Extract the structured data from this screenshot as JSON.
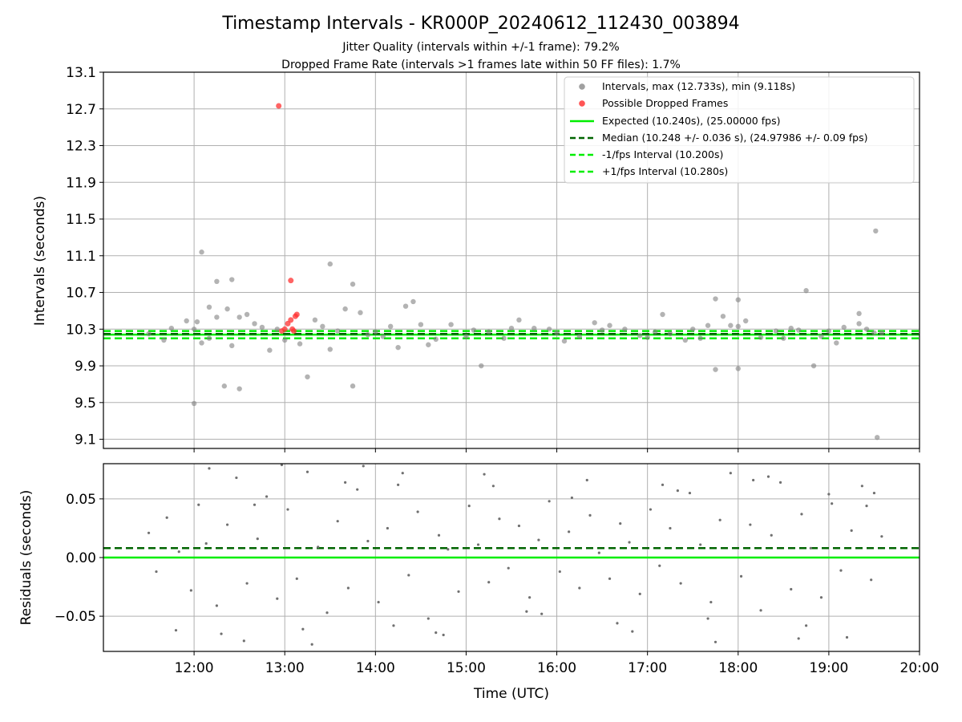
{
  "chart_data": [
    {
      "type": "scatter",
      "title": "Timestamp Intervals - KR000P_20240612_112430_003894",
      "subtitle_lines": [
        "Jitter Quality (intervals within +/-1 frame): 79.2%",
        "Dropped Frame Rate (intervals >1 frames late within 50 FF files): 1.7%"
      ],
      "ylabel": "Intervals (seconds)",
      "ylim": [
        9.0,
        13.1
      ],
      "yticks": [
        "13.1",
        "12.7",
        "12.3",
        "11.9",
        "11.5",
        "11.1",
        "10.7",
        "10.3",
        "9.9",
        "9.5",
        "9.1"
      ],
      "xlim": [
        "11:00",
        "20:00"
      ],
      "grid": true,
      "legend_position": "top-right",
      "legend": [
        {
          "label": "Intervals, max (12.733s), min (9.118s)",
          "kind": "marker",
          "color": "#a0a0a0"
        },
        {
          "label": "Possible Dropped Frames",
          "kind": "marker",
          "color": "#ff5555"
        },
        {
          "label": "Expected (10.240s), (25.00000 fps)",
          "kind": "line",
          "color": "#00ee00",
          "dash": "solid"
        },
        {
          "label": "Median (10.248 +/- 0.036 s), (24.97986 +/- 0.09 fps)",
          "kind": "line",
          "color": "#006400",
          "dash": "dashed"
        },
        {
          "label": "-1/fps Interval (10.200s)",
          "kind": "line",
          "color": "#00ee00",
          "dash": "dashed"
        },
        {
          "label": "+1/fps Interval (10.280s)",
          "kind": "line",
          "color": "#00ee00",
          "dash": "dashed"
        }
      ],
      "reference_lines": {
        "expected": 10.24,
        "median": 10.248,
        "minus_one_frame": 10.2,
        "plus_one_frame": 10.28
      },
      "series": [
        {
          "name": "Intervals, max (12.733s), min (9.118s)",
          "color": "#808080",
          "x": [
            "12:05",
            "12:02",
            "12:15",
            "12:25",
            "12:30",
            "12:10",
            "12:22",
            "12:35",
            "13:30",
            "13:45",
            "13:50",
            "13:40",
            "14:20",
            "14:25",
            "17:10",
            "17:45",
            "17:50",
            "18:00",
            "18:45",
            "19:20",
            "19:31",
            "19:32",
            "12:00",
            "12:20",
            "12:30",
            "13:15",
            "13:45",
            "15:10",
            "17:45",
            "18:00",
            "18:50",
            "12:05",
            "13:30",
            "12:00",
            "12:45",
            "13:00",
            "14:00",
            "14:30",
            "15:00",
            "15:30",
            "16:00",
            "16:30",
            "17:00",
            "17:30",
            "18:00",
            "18:30",
            "19:00",
            "19:30",
            "11:45",
            "12:10",
            "12:40",
            "13:10",
            "13:35",
            "14:10",
            "14:40",
            "15:15",
            "15:45",
            "16:15",
            "16:45",
            "17:15",
            "17:40",
            "18:15",
            "18:40",
            "19:10",
            "11:30",
            "11:55",
            "12:25",
            "12:55",
            "13:20",
            "13:55",
            "14:15",
            "14:50",
            "15:25",
            "15:55",
            "16:25",
            "16:55",
            "17:25",
            "17:55",
            "18:25",
            "18:55",
            "19:20",
            "19:35",
            "11:40",
            "12:15",
            "12:50",
            "13:25",
            "14:05",
            "14:35",
            "15:05",
            "15:35",
            "16:05",
            "16:35",
            "17:05",
            "17:35",
            "18:05",
            "18:35",
            "19:05",
            "19:25"
          ],
          "y": [
            11.14,
            10.38,
            10.82,
            10.84,
            10.43,
            10.54,
            10.52,
            10.46,
            11.01,
            10.79,
            10.48,
            10.52,
            10.55,
            10.6,
            10.46,
            10.63,
            10.44,
            10.62,
            10.72,
            10.47,
            11.37,
            9.12,
            9.49,
            9.68,
            9.65,
            9.78,
            9.68,
            9.9,
            9.86,
            9.87,
            9.9,
            10.15,
            10.08,
            10.3,
            10.32,
            10.18,
            10.27,
            10.35,
            10.22,
            10.31,
            10.26,
            10.29,
            10.21,
            10.3,
            10.33,
            10.2,
            10.28,
            10.26,
            10.31,
            10.2,
            10.36,
            10.14,
            10.28,
            10.33,
            10.19,
            10.27,
            10.31,
            10.22,
            10.3,
            10.25,
            10.34,
            10.21,
            10.29,
            10.32,
            10.25,
            10.39,
            10.12,
            10.3,
            10.4,
            10.24,
            10.1,
            10.35,
            10.2,
            10.3,
            10.37,
            10.23,
            10.18,
            10.34,
            10.28,
            10.22,
            10.36,
            10.26,
            10.18,
            10.43,
            10.07,
            10.33,
            10.22,
            10.13,
            10.29,
            10.4,
            10.17,
            10.34,
            10.27,
            10.2,
            10.39,
            10.31,
            10.15,
            10.3
          ]
        },
        {
          "name": "Possible Dropped Frames",
          "color": "#ff3030",
          "x": [
            "12:56",
            "12:58",
            "13:00",
            "13:02",
            "13:04",
            "13:05",
            "13:06",
            "13:07",
            "13:08",
            "13:04"
          ],
          "y": [
            12.733,
            10.28,
            10.3,
            10.36,
            10.4,
            10.3,
            10.28,
            10.44,
            10.46,
            10.83
          ]
        }
      ]
    },
    {
      "type": "scatter",
      "ylabel": "Residuals (seconds)",
      "xlabel": "Time (UTC)",
      "ylim": [
        -0.08,
        0.08
      ],
      "yticks": [
        "0.05",
        "0.00",
        "−0.05"
      ],
      "ytick_values": [
        0.05,
        0.0,
        -0.05
      ],
      "xticks": [
        "12:00",
        "13:00",
        "14:00",
        "15:00",
        "16:00",
        "17:00",
        "18:00",
        "19:00",
        "20:00"
      ],
      "xlim": [
        "11:00",
        "20:00"
      ],
      "grid": true,
      "reference_lines": {
        "expected": 0.0,
        "median": 0.008
      },
      "series": [
        {
          "color": "#707070",
          "x": [
            "11:30",
            "11:35",
            "11:42",
            "11:50",
            "11:58",
            "12:03",
            "12:08",
            "12:15",
            "12:22",
            "12:28",
            "12:35",
            "12:42",
            "12:48",
            "12:55",
            "13:02",
            "13:08",
            "13:15",
            "13:22",
            "13:28",
            "13:35",
            "13:42",
            "13:48",
            "13:55",
            "14:02",
            "14:08",
            "14:15",
            "14:22",
            "14:28",
            "14:35",
            "14:42",
            "14:48",
            "14:55",
            "15:02",
            "15:08",
            "15:15",
            "15:22",
            "15:28",
            "15:35",
            "15:42",
            "15:48",
            "15:55",
            "16:02",
            "16:08",
            "16:15",
            "16:22",
            "16:28",
            "16:35",
            "16:42",
            "16:48",
            "16:55",
            "17:02",
            "17:08",
            "17:15",
            "17:22",
            "17:28",
            "17:35",
            "17:42",
            "17:48",
            "17:55",
            "18:02",
            "18:08",
            "18:15",
            "18:22",
            "18:28",
            "18:35",
            "18:42",
            "18:48",
            "18:55",
            "19:02",
            "19:08",
            "19:15",
            "19:22",
            "19:28",
            "19:35",
            "11:48",
            "12:10",
            "12:33",
            "12:58",
            "13:18",
            "13:52",
            "14:12",
            "14:45",
            "15:12",
            "15:50",
            "16:20",
            "16:50",
            "17:20",
            "17:45",
            "18:20",
            "18:45",
            "19:12",
            "19:30",
            "12:18",
            "12:40",
            "13:12",
            "13:40",
            "14:18",
            "14:40",
            "15:18",
            "15:40",
            "16:10",
            "16:40",
            "17:10",
            "17:40",
            "18:10",
            "18:40",
            "19:00",
            "19:25"
          ],
          "y": [
            0.021,
            -0.012,
            0.034,
            0.005,
            -0.028,
            0.045,
            0.012,
            -0.041,
            0.028,
            0.068,
            -0.022,
            0.016,
            0.052,
            -0.035,
            0.041,
            -0.018,
            0.073,
            0.009,
            -0.047,
            0.031,
            -0.026,
            0.058,
            0.014,
            -0.038,
            0.025,
            0.062,
            -0.015,
            0.039,
            -0.052,
            0.019,
            0.007,
            -0.029,
            0.044,
            0.011,
            -0.021,
            0.033,
            -0.009,
            0.027,
            -0.034,
            0.015,
            0.048,
            -0.012,
            0.022,
            -0.026,
            0.036,
            0.004,
            -0.018,
            0.029,
            0.013,
            -0.031,
            0.041,
            -0.007,
            0.025,
            -0.022,
            0.055,
            0.011,
            -0.038,
            0.032,
            0.072,
            -0.016,
            0.028,
            -0.045,
            0.019,
            0.064,
            -0.027,
            0.037,
            0.008,
            -0.034,
            0.046,
            -0.011,
            0.023,
            0.061,
            -0.019,
            0.018,
            -0.062,
            0.076,
            -0.071,
            0.079,
            -0.074,
            0.078,
            -0.058,
            -0.066,
            0.071,
            -0.048,
            0.066,
            -0.063,
            0.057,
            -0.072,
            0.069,
            -0.058,
            -0.068,
            0.055,
            -0.065,
            0.045,
            -0.061,
            0.064,
            0.072,
            -0.064,
            0.061,
            -0.046,
            0.051,
            -0.056,
            0.062,
            -0.052,
            0.066,
            -0.069,
            0.054,
            0.044
          ]
        }
      ]
    }
  ]
}
